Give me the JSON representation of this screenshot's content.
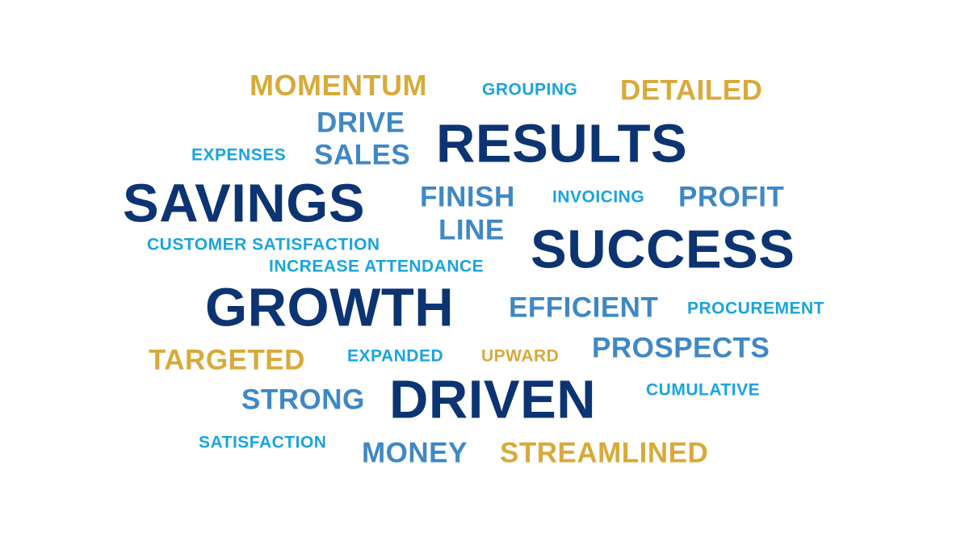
{
  "palette": {
    "navy": "#0c3473",
    "mid_blue": "#3f88c5",
    "sky_blue": "#1aa4de",
    "gold": "#d8aa3a",
    "background": "#ffffff"
  },
  "words": [
    {
      "id": "momentum",
      "text": "MOMENTUM",
      "color": "gold",
      "weight": 3
    },
    {
      "id": "grouping",
      "text": "GROUPING",
      "color": "sky_blue",
      "weight": 1
    },
    {
      "id": "detailed",
      "text": "DETAILED",
      "color": "gold",
      "weight": 3
    },
    {
      "id": "drive",
      "text": "DRIVE",
      "color": "mid_blue",
      "weight": 3
    },
    {
      "id": "results",
      "text": "RESULTS",
      "color": "navy",
      "weight": 5
    },
    {
      "id": "expenses",
      "text": "EXPENSES",
      "color": "sky_blue",
      "weight": 1
    },
    {
      "id": "sales",
      "text": "SALES",
      "color": "mid_blue",
      "weight": 3
    },
    {
      "id": "savings",
      "text": "SAVINGS",
      "color": "navy",
      "weight": 5
    },
    {
      "id": "finish",
      "text": "FINISH",
      "color": "mid_blue",
      "weight": 3
    },
    {
      "id": "invoicing",
      "text": "INVOICING",
      "color": "sky_blue",
      "weight": 1
    },
    {
      "id": "profit",
      "text": "PROFIT",
      "color": "mid_blue",
      "weight": 3
    },
    {
      "id": "line",
      "text": "LINE",
      "color": "mid_blue",
      "weight": 3
    },
    {
      "id": "success",
      "text": "SUCCESS",
      "color": "navy",
      "weight": 5
    },
    {
      "id": "customer-satisfaction",
      "text": "CUSTOMER SATISFACTION",
      "color": "sky_blue",
      "weight": 1
    },
    {
      "id": "increase-attendance",
      "text": "INCREASE ATTENDANCE",
      "color": "sky_blue",
      "weight": 1
    },
    {
      "id": "growth",
      "text": "GROWTH",
      "color": "navy",
      "weight": 5
    },
    {
      "id": "efficient",
      "text": "EFFICIENT",
      "color": "mid_blue",
      "weight": 3
    },
    {
      "id": "procurement",
      "text": "PROCUREMENT",
      "color": "sky_blue",
      "weight": 1
    },
    {
      "id": "targeted",
      "text": "TARGETED",
      "color": "gold",
      "weight": 3
    },
    {
      "id": "expanded",
      "text": "EXPANDED",
      "color": "sky_blue",
      "weight": 1
    },
    {
      "id": "upward",
      "text": "UPWARD",
      "color": "gold",
      "weight": 1
    },
    {
      "id": "prospects",
      "text": "PROSPECTS",
      "color": "mid_blue",
      "weight": 3
    },
    {
      "id": "strong",
      "text": "STRONG",
      "color": "mid_blue",
      "weight": 3
    },
    {
      "id": "driven",
      "text": "DRIVEN",
      "color": "navy",
      "weight": 5
    },
    {
      "id": "cumulative",
      "text": "CUMULATIVE",
      "color": "sky_blue",
      "weight": 1
    },
    {
      "id": "satisfaction",
      "text": "SATISFACTION",
      "color": "sky_blue",
      "weight": 1
    },
    {
      "id": "money",
      "text": "MONEY",
      "color": "mid_blue",
      "weight": 3
    },
    {
      "id": "streamlined",
      "text": "STREAMLINED",
      "color": "gold",
      "weight": 3
    }
  ]
}
